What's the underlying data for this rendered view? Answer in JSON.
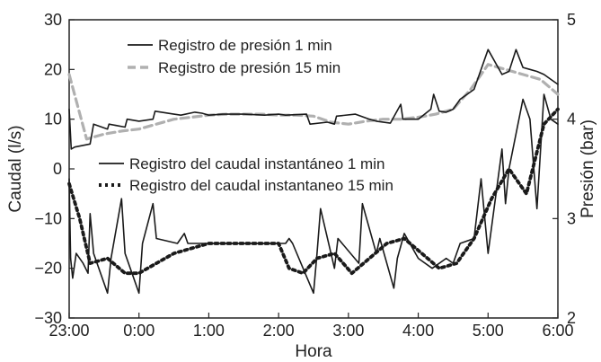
{
  "chart_data": {
    "type": "line",
    "xlabel": "Hora",
    "ylabel_left": "Caudal (l/s)",
    "ylabel_right": "Presión (bar)",
    "x_ticks": [
      "23:00",
      "0:00",
      "1:00",
      "2:00",
      "3:00",
      "4:00",
      "5:00",
      "6:00"
    ],
    "x_range": [
      0,
      7
    ],
    "y_left_ticks": [
      "30",
      "20",
      "10",
      "0",
      "−10",
      "−20",
      "−30"
    ],
    "y_left_range": [
      -30,
      30
    ],
    "y_right_ticks": [
      "5",
      "4",
      "3",
      "2"
    ],
    "y_right_range": [
      2,
      5
    ],
    "grid": false,
    "legend_position": "inside-top-left",
    "series": [
      {
        "name": "Registro de presión 1 min",
        "axis": "right",
        "style": "solid-thin",
        "color": "#1a1a1a",
        "x": [
          0,
          0.03,
          0.08,
          0.3,
          0.35,
          0.55,
          0.57,
          0.8,
          0.83,
          1.0,
          1.2,
          1.23,
          1.5,
          1.6,
          1.8,
          1.9,
          2.0,
          2.2,
          2.5,
          2.8,
          3.0,
          3.1,
          3.4,
          3.45,
          3.7,
          3.8,
          3.83,
          4.1,
          4.3,
          4.4,
          4.6,
          4.75,
          4.78,
          4.8,
          5.0,
          5.18,
          5.22,
          5.3,
          5.4,
          5.5,
          5.6,
          5.8,
          6.0,
          6.2,
          6.3,
          6.4,
          6.5,
          6.6,
          6.7,
          6.8,
          6.9,
          7.0
        ],
        "y": [
          4.1,
          3.7,
          3.72,
          3.75,
          3.95,
          3.9,
          3.95,
          3.92,
          4.0,
          3.98,
          4.0,
          4.08,
          4.05,
          4.04,
          4.07,
          4.06,
          4.04,
          4.05,
          4.05,
          4.04,
          4.05,
          4.04,
          4.05,
          3.95,
          3.97,
          3.95,
          4.03,
          4.05,
          4.0,
          3.98,
          3.96,
          4.15,
          4.0,
          4.0,
          4.0,
          4.1,
          4.25,
          4.08,
          4.07,
          4.1,
          4.2,
          4.3,
          4.7,
          4.45,
          4.48,
          4.7,
          4.52,
          4.5,
          4.48,
          4.45,
          4.4,
          4.35
        ]
      },
      {
        "name": "Registro de presión 15 min",
        "axis": "right",
        "style": "dashed-gray",
        "color": "#b0b0b0",
        "x": [
          0,
          0.25,
          0.5,
          0.75,
          1.0,
          1.25,
          1.5,
          1.75,
          2.0,
          2.25,
          2.5,
          2.75,
          3.0,
          3.25,
          3.5,
          3.75,
          4.0,
          4.25,
          4.5,
          4.75,
          5.0,
          5.25,
          5.5,
          5.75,
          6.0,
          6.25,
          6.5,
          6.75,
          7.0
        ],
        "y": [
          4.45,
          3.8,
          3.85,
          3.88,
          3.9,
          3.95,
          4.0,
          4.02,
          4.04,
          4.05,
          4.05,
          4.05,
          4.04,
          4.04,
          4.03,
          3.97,
          3.95,
          3.98,
          4.0,
          4.0,
          4.02,
          4.05,
          4.1,
          4.3,
          4.55,
          4.5,
          4.45,
          4.4,
          4.25
        ]
      },
      {
        "name": "Registro del caudal instantáneo 1 min",
        "axis": "left",
        "style": "solid-thin",
        "color": "#1a1a1a",
        "x": [
          0,
          0.02,
          0.05,
          0.1,
          0.2,
          0.27,
          0.3,
          0.35,
          0.55,
          0.6,
          0.75,
          0.8,
          1.0,
          1.05,
          1.2,
          1.25,
          1.55,
          1.6,
          1.65,
          1.7,
          2.0,
          2.05,
          2.2,
          2.5,
          2.8,
          3.0,
          3.1,
          3.15,
          3.2,
          3.5,
          3.55,
          3.6,
          3.8,
          3.85,
          4.15,
          4.2,
          4.4,
          4.45,
          4.65,
          4.7,
          4.8,
          5.0,
          5.2,
          5.4,
          5.5,
          5.6,
          5.8,
          5.9,
          6.0,
          6.2,
          6.25,
          6.3,
          6.5,
          6.6,
          6.7,
          6.8,
          6.9,
          7.0
        ],
        "y": [
          -2,
          -18,
          -22,
          -17,
          -19,
          -21,
          -9,
          -17,
          -25,
          -18,
          -6,
          -17,
          -25,
          -15,
          -7,
          -14,
          -15,
          -14,
          -13,
          -15,
          -15,
          -15,
          -15,
          -15,
          -15,
          -15,
          -15,
          -14,
          -15,
          -25,
          -17,
          -8,
          -20,
          -14,
          -19,
          -7,
          -17,
          -14,
          -24,
          -18,
          -13,
          -18,
          -20,
          -18,
          -19,
          -15,
          -14,
          -2,
          -17,
          4,
          -7,
          0,
          14,
          10,
          -8,
          15,
          10,
          9
        ]
      },
      {
        "name": "Registro del caudal instantaneo 15 min",
        "axis": "left",
        "style": "dotted-thick",
        "color": "#1a1a1a",
        "x": [
          0,
          0.15,
          0.3,
          0.55,
          0.8,
          1.0,
          1.25,
          1.5,
          1.75,
          2.0,
          2.25,
          2.5,
          2.75,
          3.0,
          3.15,
          3.35,
          3.55,
          3.8,
          4.05,
          4.3,
          4.55,
          4.8,
          5.05,
          5.3,
          5.55,
          5.8,
          6.05,
          6.3,
          6.55,
          6.8,
          7.0
        ],
        "y": [
          -3,
          -10,
          -19,
          -18,
          -21,
          -21,
          -19,
          -17,
          -16,
          -15,
          -15,
          -15,
          -15,
          -15,
          -20,
          -21,
          -18,
          -17,
          -21,
          -18,
          -15,
          -14,
          -17,
          -20,
          -19,
          -14,
          -6,
          0,
          -5,
          9,
          12
        ]
      }
    ]
  }
}
